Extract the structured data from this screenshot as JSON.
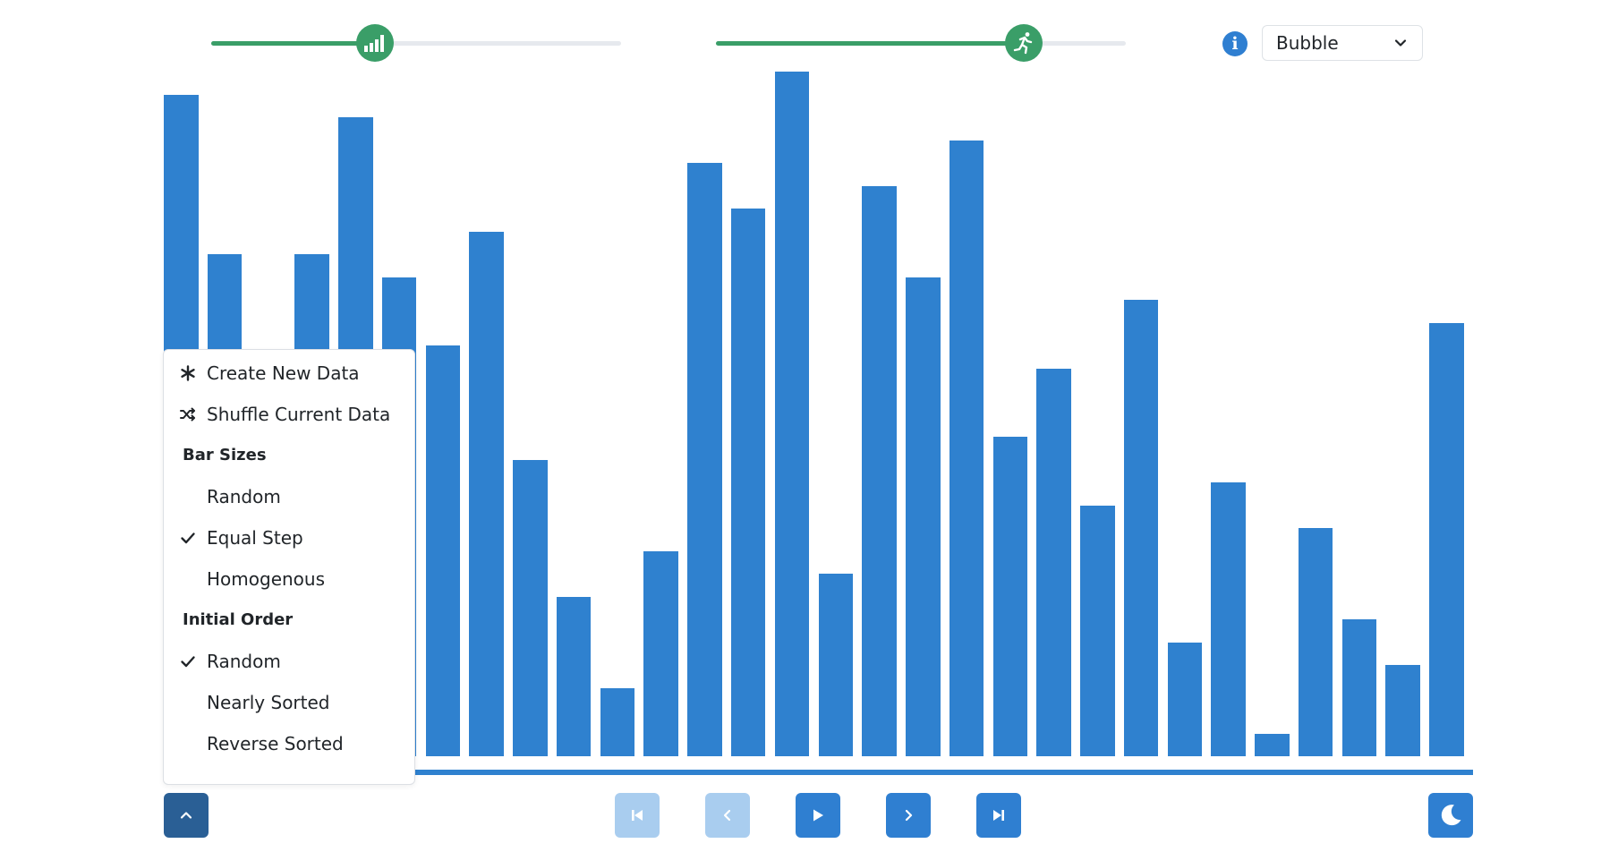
{
  "controls": {
    "size_slider": {
      "value": 0.4,
      "icon": "bar-signal-icon"
    },
    "speed_slider": {
      "value": 0.75,
      "icon": "running-person-icon"
    },
    "info_icon_glyph": "i",
    "algorithm": {
      "selected": "Bubble"
    }
  },
  "colors": {
    "bar": "#2f81cf",
    "slider": "#3a9e68",
    "button": "#2f7fd1",
    "button_disabled": "#a9cdef",
    "menu_toggle": "#2a5f95"
  },
  "bars": {
    "max": 30,
    "values": [
      29,
      22,
      10,
      22,
      28,
      21,
      18,
      23,
      13,
      7,
      3,
      9,
      26,
      24,
      30,
      8,
      25,
      21,
      27,
      14,
      17,
      11,
      20,
      5,
      12,
      1,
      10,
      6,
      4,
      19
    ]
  },
  "menu": {
    "create_new": "Create New Data",
    "shuffle": "Shuffle Current Data",
    "bar_sizes_heading": "Bar Sizes",
    "bar_sizes": [
      {
        "label": "Random",
        "checked": false
      },
      {
        "label": "Equal Step",
        "checked": true
      },
      {
        "label": "Homogenous",
        "checked": false
      }
    ],
    "initial_order_heading": "Initial Order",
    "initial_order": [
      {
        "label": "Random",
        "checked": true
      },
      {
        "label": "Nearly Sorted",
        "checked": false
      },
      {
        "label": "Reverse Sorted",
        "checked": false
      }
    ]
  },
  "playback": {
    "first_enabled": false,
    "prev_enabled": false,
    "play_enabled": true,
    "next_enabled": true,
    "last_enabled": true
  }
}
